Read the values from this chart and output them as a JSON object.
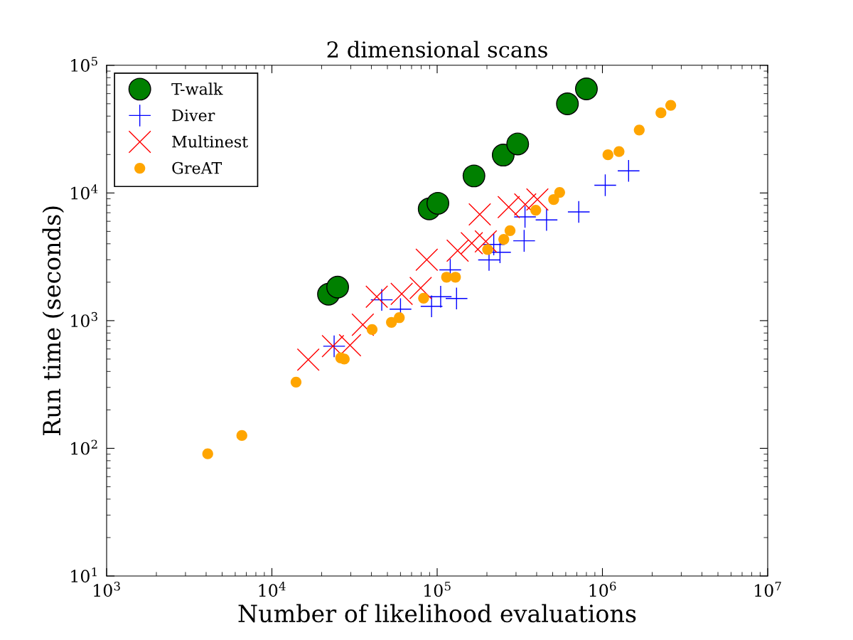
{
  "chart_data": {
    "type": "scatter",
    "title": "2 dimensional scans",
    "xlabel": "Number of likelihood evaluations",
    "ylabel": "Run time (seconds)",
    "log": "xy",
    "grid": false,
    "legend": "top left",
    "xlim": [
      1000,
      10000000
    ],
    "ylim": [
      10,
      100000
    ],
    "xticks": [
      {
        "value": 1000,
        "label": "10$^{3}$"
      },
      {
        "value": 10000,
        "label": "10$^{4}$"
      },
      {
        "value": 100000,
        "label": "10$^{5}$"
      },
      {
        "value": 1000000,
        "label": "10$^{6}$"
      },
      {
        "value": 10000000,
        "label": "10$^{7}$"
      }
    ],
    "yticks": [
      {
        "value": 10,
        "label": "10$^{1}$"
      },
      {
        "value": 100,
        "label": "10$^{2}$"
      },
      {
        "value": 1000,
        "label": "10$^{3}$"
      },
      {
        "value": 10000,
        "label": "10$^{4}$"
      },
      {
        "value": 100000,
        "label": "10$^{5}$"
      }
    ],
    "series": [
      {
        "name": "T-walk",
        "color": "#008000",
        "marker": "circle",
        "x": [
          22000,
          25000,
          89500,
          101000,
          167000,
          251000,
          307000,
          614000,
          800000
        ],
        "values": [
          1610,
          1830,
          7500,
          8300,
          13600,
          19800,
          24200,
          49900,
          65300
        ]
      },
      {
        "name": "Diver",
        "color": "#0000ff",
        "marker": "cross",
        "x": [
          23800,
          46200,
          60000,
          92500,
          105000,
          131000,
          120000,
          206000,
          240000,
          220000,
          336000,
          340000,
          459000,
          719000,
          1040000,
          1440000
        ],
        "values": [
          630,
          1455,
          1230,
          1295,
          1540,
          1490,
          2500,
          2990,
          3430,
          3950,
          4220,
          6490,
          6150,
          7100,
          11500,
          14900
        ]
      },
      {
        "name": "Multinest",
        "color": "#ff0000",
        "marker": "cross",
        "x": [
          16600,
          23400,
          29700,
          35500,
          43100,
          61000,
          79500,
          86500,
          133000,
          162000,
          197000,
          181000,
          271000,
          341000,
          404000
        ],
        "values": [
          495,
          632,
          641,
          929,
          1540,
          1620,
          1800,
          3000,
          3530,
          4040,
          4170,
          6800,
          7740,
          8130,
          8890
        ]
      },
      {
        "name": "GreAT",
        "color": "#ffa500",
        "marker": "circle",
        "x": [
          4090,
          6580,
          14000,
          26100,
          27400,
          40400,
          52900,
          59000,
          82800,
          114000,
          129000,
          202000,
          253000,
          276000,
          395000,
          507000,
          551000,
          1080000,
          1260000,
          1670000,
          2260000,
          2590000
        ],
        "values": [
          90.6,
          126,
          330,
          511,
          500,
          853,
          970,
          1055,
          1500,
          2190,
          2190,
          3610,
          4330,
          5070,
          7330,
          8890,
          10100,
          19900,
          21100,
          31100,
          42400,
          48600
        ]
      }
    ]
  }
}
